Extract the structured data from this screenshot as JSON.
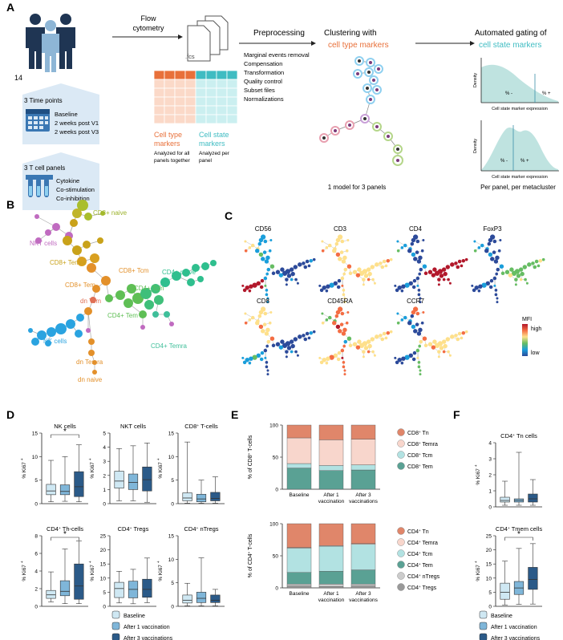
{
  "panels": {
    "a": "A",
    "b": "B",
    "c": "C",
    "d": "D",
    "e": "E",
    "f": "F"
  },
  "colors": {
    "baseline": "#cfe8f3",
    "after1": "#7fb6d9",
    "after3": "#2b5a88",
    "cell_type": "#e8703a",
    "cell_state": "#3fbcc2",
    "panel_bg": "#dbe9f5"
  },
  "workflow": {
    "donors": "14",
    "timepoints": {
      "title": "3 Time points",
      "items": [
        "Baseline",
        "2 weeks post V1",
        "2 weeks post V3"
      ]
    },
    "tcell_panels": {
      "title": "3 T cell panels",
      "items": [
        "Cytokine",
        "Co-stimulation",
        "Co-inhibition"
      ]
    },
    "flow": {
      "line1": "Flow",
      "line2": "cytometry",
      "file_ext": ".fcs"
    },
    "cell_type_label": {
      "line1": "Cell type",
      "line2": "markers",
      "note1": "Analyzed for all",
      "note2": "panels together"
    },
    "cell_state_label": {
      "line1": "Cell state",
      "line2": "markers",
      "note1": "Analyzed per",
      "note2": "panel"
    },
    "preprocessing": {
      "title": "Preprocessing",
      "steps": [
        "Marginal events removal",
        "Compensation",
        "Transformation",
        "Quality control",
        "Subset files",
        "Normalizations"
      ]
    },
    "clustering": {
      "line1": "Clustering with",
      "highlight": "cell type markers",
      "caption": "1 model for 3 panels"
    },
    "gating": {
      "line1": "Automated gating of",
      "highlight": "cell state markers",
      "caption": "Per panel, per metacluster",
      "y_label": "Density",
      "x_label": "Cell state marker expression",
      "minus": "% -",
      "plus": "% +"
    }
  },
  "tree": {
    "labels": [
      "CD8+ naive",
      "NKT cells",
      "CD8+ Temra",
      "CD8+ Tcm",
      "CD8+ Tem",
      "CD4+ naive",
      "CD4+ Tcm",
      "dn Tem",
      "CD4+ Tem",
      "NK cells",
      "CD4+ Temra",
      "dn Temra",
      "dn naive"
    ]
  },
  "markers": {
    "names": [
      "CD56",
      "CD3",
      "CD4",
      "FoxP3",
      "CD8",
      "CD45RA",
      "CCR7"
    ],
    "legend_title": "MFI",
    "high": "high",
    "low": "low"
  },
  "boxplots": {
    "y_label": "% Ki67",
    "star": "*",
    "legend": [
      "Baseline",
      "After 1 vaccination",
      "After 3 vaccinations"
    ],
    "panels": [
      {
        "title": "NK cells",
        "ymax": 15,
        "ticks": [
          0,
          5,
          10,
          15
        ],
        "sig": true,
        "boxes": [
          [
            0.4,
            1.9,
            2.7,
            4.1,
            9.2
          ],
          [
            0.5,
            1.9,
            2.6,
            4.0,
            10.0
          ],
          [
            0.4,
            1.5,
            3.6,
            6.8,
            12.5
          ]
        ]
      },
      {
        "title": "NKT cells",
        "ymax": 5,
        "ticks": [
          0,
          1,
          2,
          3,
          4,
          5
        ],
        "sig": false,
        "boxes": [
          [
            0.2,
            1.1,
            1.6,
            2.3,
            3.9
          ],
          [
            0.2,
            1.0,
            1.5,
            2.1,
            4.1
          ],
          [
            0.1,
            0.9,
            1.7,
            2.6,
            4.3
          ]
        ]
      },
      {
        "title": "CD8+ T-cells",
        "ymax": 15,
        "ticks": [
          0,
          5,
          10,
          15
        ],
        "sig": false,
        "boxes": [
          [
            0.1,
            0.6,
            1.2,
            2.3,
            13.1
          ],
          [
            0.1,
            0.4,
            1.0,
            2.0,
            5.0
          ],
          [
            0.1,
            0.6,
            1.1,
            2.4,
            5.7
          ]
        ]
      },
      {
        "title": "CD4+ Th-cells",
        "ymax": 8,
        "ticks": [
          0,
          2,
          4,
          6,
          8
        ],
        "sig": true,
        "boxes": [
          [
            0.5,
            0.9,
            1.3,
            1.8,
            3.9
          ],
          [
            0.3,
            1.2,
            1.7,
            2.9,
            6.5
          ],
          [
            0.3,
            0.8,
            2.3,
            4.8,
            7.4
          ]
        ]
      },
      {
        "title": "CD4+ Tregs",
        "ymax": 25,
        "ticks": [
          0,
          5,
          10,
          15,
          20,
          25
        ],
        "sig": false,
        "boxes": [
          [
            1.2,
            3.1,
            6.3,
            8.5,
            12.4
          ],
          [
            0.9,
            3.0,
            6.0,
            8.9,
            13.1
          ],
          [
            1.3,
            3.2,
            6.0,
            9.6,
            17.1
          ]
        ]
      },
      {
        "title": "CD4+ nTregs",
        "ymax": 15,
        "ticks": [
          0,
          5,
          10,
          15
        ],
        "sig": false,
        "boxes": [
          [
            0.1,
            0.7,
            1.3,
            2.4,
            4.9
          ],
          [
            0.1,
            0.8,
            1.7,
            3.0,
            10.3
          ],
          [
            0.1,
            0.8,
            1.3,
            2.4,
            3.6
          ]
        ]
      }
    ]
  },
  "stacked": {
    "x_labels": [
      [
        "Baseline"
      ],
      [
        "After 1",
        "vaccination"
      ],
      [
        "After 3",
        "vaccinations"
      ]
    ],
    "ticks": [
      0,
      50,
      100
    ],
    "cd8": {
      "y_label": "% of CD8+ T-cells",
      "series": [
        {
          "name": "CD8+ Tem",
          "color": "#5aa194",
          "values": [
            33,
            29,
            30
          ]
        },
        {
          "name": "CD8+ Tcm",
          "color": "#b2e2e2",
          "values": [
            7,
            8,
            8
          ]
        },
        {
          "name": "CD8+ Temra",
          "color": "#f8d6cc",
          "values": [
            40,
            40,
            40
          ]
        },
        {
          "name": "CD8+ Tn",
          "color": "#e0866a",
          "values": [
            20,
            23,
            22
          ]
        }
      ]
    },
    "cd4": {
      "y_label": "% of CD4+ T-cells",
      "series": [
        {
          "name": "CD4+ Tregs",
          "color": "#999999",
          "values": [
            3,
            2,
            3
          ]
        },
        {
          "name": "CD4+ nTregs",
          "color": "#cccccc",
          "values": [
            3,
            4,
            3
          ]
        },
        {
          "name": "CD4+ Tem",
          "color": "#5aa194",
          "values": [
            18,
            20,
            22
          ]
        },
        {
          "name": "CD4+ Tcm",
          "color": "#b2e2e2",
          "values": [
            38,
            39,
            40
          ]
        },
        {
          "name": "CD4+ Temra",
          "color": "#f8d6cc",
          "values": [
            1,
            1,
            1
          ]
        },
        {
          "name": "CD4+ Tn",
          "color": "#e0866a",
          "values": [
            37,
            34,
            31
          ]
        }
      ]
    }
  },
  "panel_f": {
    "panels": [
      {
        "title": "CD4+ Tn cells",
        "ymax": 4,
        "ticks": [
          0,
          1,
          2,
          3,
          4
        ],
        "sig": false,
        "boxes": [
          [
            0.1,
            0.3,
            0.4,
            0.6,
            1.6
          ],
          [
            0.1,
            0.3,
            0.4,
            0.5,
            3.4
          ],
          [
            0.1,
            0.3,
            0.5,
            0.8,
            1.7
          ]
        ]
      },
      {
        "title": "CD4+ Tmem cells",
        "ymax": 25,
        "ticks": [
          0,
          5,
          10,
          15,
          20,
          25
        ],
        "sig": true,
        "boxes": [
          [
            0.5,
            2.5,
            5.0,
            8.2,
            16.0
          ],
          [
            0.7,
            4.2,
            6.5,
            8.8,
            20.5
          ],
          [
            0.8,
            6.0,
            9.5,
            13.8,
            22.2
          ]
        ]
      }
    ]
  }
}
